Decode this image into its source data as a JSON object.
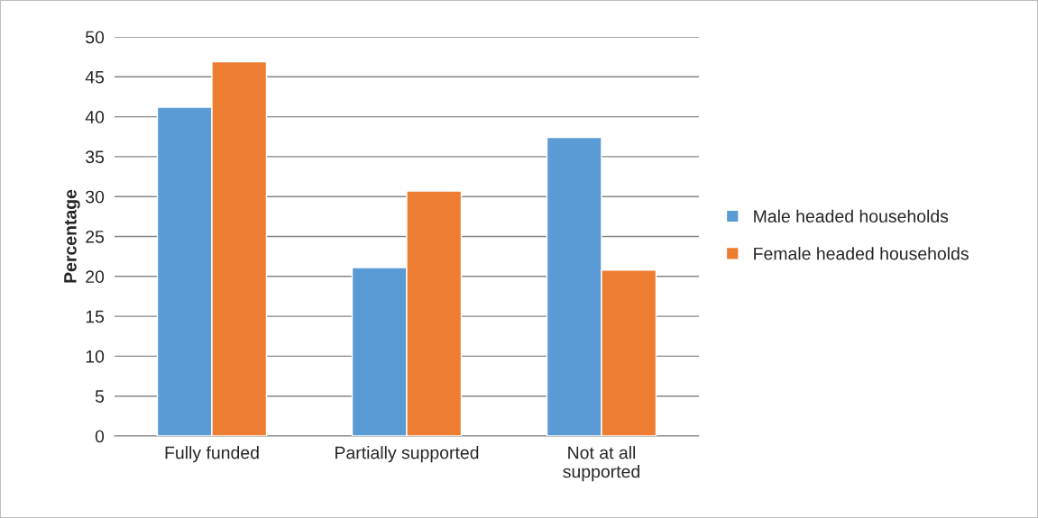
{
  "chart_data": {
    "type": "bar",
    "ylabel": "Percentage",
    "categories": [
      "Fully funded",
      "Partially supported",
      "Not at all\nsupported"
    ],
    "series": [
      {
        "name": "Male headed households",
        "color": "#5b9bd5",
        "values": [
          41.2,
          21.1,
          37.4
        ]
      },
      {
        "name": "Female headed households",
        "color": "#ed7d31",
        "values": [
          46.9,
          30.7,
          20.8
        ]
      }
    ],
    "ylim": [
      0,
      50
    ],
    "yticks": [
      0,
      5,
      10,
      15,
      20,
      25,
      30,
      35,
      40,
      45,
      50
    ],
    "grid": "y",
    "legend": "right"
  }
}
